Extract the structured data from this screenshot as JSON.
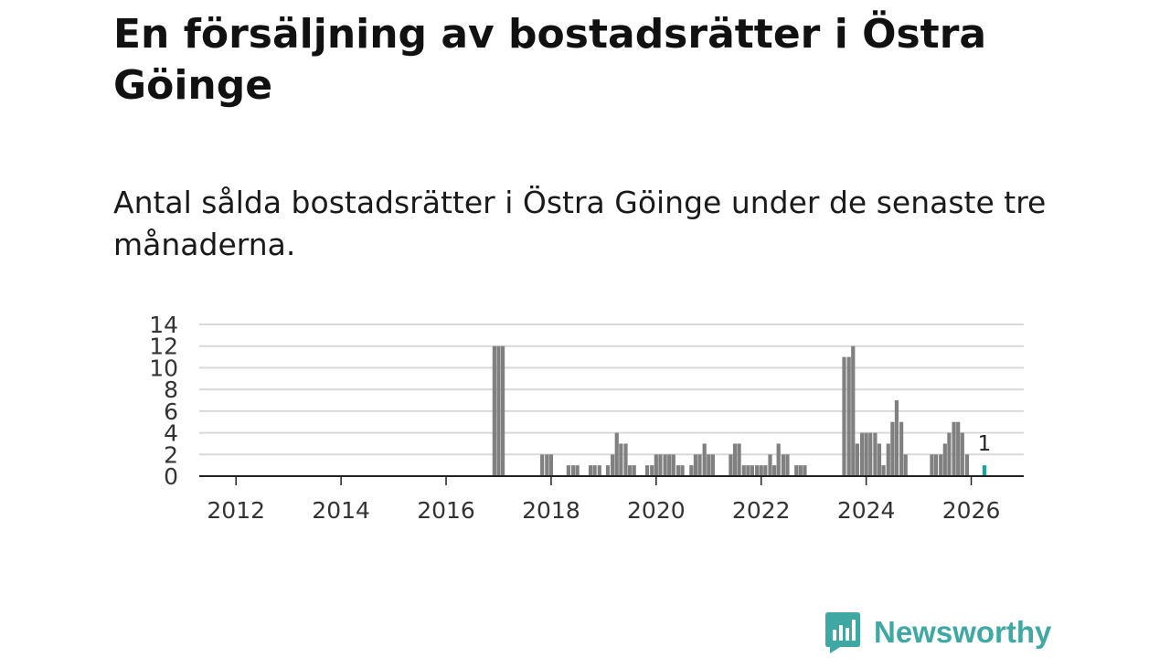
{
  "header": {
    "title": "En försäljning av bostadsrätter i Östra Göinge",
    "subtitle": "Antal sålda bostadsrätter i Östra Göinge under de senaste tre månaderna."
  },
  "brand": {
    "name": "Newsworthy",
    "color": "#3fa8a2",
    "logo_icon": "bar-chart-speech-bubble-icon"
  },
  "colors": {
    "bar": "#808080",
    "highlight": "#1aa398",
    "grid": "#d9d9d9",
    "axis": "#222222"
  },
  "chart_data": {
    "type": "bar",
    "title": "En försäljning av bostadsrätter i Östra Göinge",
    "subtitle": "Antal sålda bostadsrätter i Östra Göinge under de senaste tre månaderna.",
    "xlabel": "",
    "ylabel": "",
    "xlim": [
      2011.3,
      2027.0
    ],
    "ylim": [
      0,
      14
    ],
    "yticks": [
      0,
      2,
      4,
      6,
      8,
      10,
      12,
      14
    ],
    "xticks": [
      2012,
      2014,
      2016,
      2018,
      2020,
      2022,
      2024,
      2026
    ],
    "grid": true,
    "legend": "none",
    "series": [
      {
        "name": "Antal sålda bostadsrätter",
        "points": [
          {
            "x": 2016.92,
            "y": 12
          },
          {
            "x": 2017.0,
            "y": 12
          },
          {
            "x": 2017.08,
            "y": 12
          },
          {
            "x": 2017.83,
            "y": 2
          },
          {
            "x": 2017.92,
            "y": 2
          },
          {
            "x": 2018.0,
            "y": 2
          },
          {
            "x": 2018.33,
            "y": 1
          },
          {
            "x": 2018.42,
            "y": 1
          },
          {
            "x": 2018.5,
            "y": 1
          },
          {
            "x": 2018.75,
            "y": 1
          },
          {
            "x": 2018.83,
            "y": 1
          },
          {
            "x": 2018.92,
            "y": 1
          },
          {
            "x": 2019.08,
            "y": 1
          },
          {
            "x": 2019.17,
            "y": 2
          },
          {
            "x": 2019.25,
            "y": 4
          },
          {
            "x": 2019.33,
            "y": 3
          },
          {
            "x": 2019.42,
            "y": 3
          },
          {
            "x": 2019.5,
            "y": 1
          },
          {
            "x": 2019.58,
            "y": 1
          },
          {
            "x": 2019.83,
            "y": 1
          },
          {
            "x": 2019.92,
            "y": 1
          },
          {
            "x": 2020.0,
            "y": 2
          },
          {
            "x": 2020.08,
            "y": 2
          },
          {
            "x": 2020.17,
            "y": 2
          },
          {
            "x": 2020.25,
            "y": 2
          },
          {
            "x": 2020.33,
            "y": 2
          },
          {
            "x": 2020.42,
            "y": 1
          },
          {
            "x": 2020.5,
            "y": 1
          },
          {
            "x": 2020.67,
            "y": 1
          },
          {
            "x": 2020.75,
            "y": 2
          },
          {
            "x": 2020.83,
            "y": 2
          },
          {
            "x": 2020.92,
            "y": 3
          },
          {
            "x": 2021.0,
            "y": 2
          },
          {
            "x": 2021.08,
            "y": 2
          },
          {
            "x": 2021.42,
            "y": 2
          },
          {
            "x": 2021.5,
            "y": 3
          },
          {
            "x": 2021.58,
            "y": 3
          },
          {
            "x": 2021.67,
            "y": 1
          },
          {
            "x": 2021.75,
            "y": 1
          },
          {
            "x": 2021.83,
            "y": 1
          },
          {
            "x": 2021.92,
            "y": 1
          },
          {
            "x": 2022.0,
            "y": 1
          },
          {
            "x": 2022.08,
            "y": 1
          },
          {
            "x": 2022.17,
            "y": 2
          },
          {
            "x": 2022.25,
            "y": 1
          },
          {
            "x": 2022.33,
            "y": 3
          },
          {
            "x": 2022.42,
            "y": 2
          },
          {
            "x": 2022.5,
            "y": 2
          },
          {
            "x": 2022.67,
            "y": 1
          },
          {
            "x": 2022.75,
            "y": 1
          },
          {
            "x": 2022.83,
            "y": 1
          },
          {
            "x": 2023.58,
            "y": 11
          },
          {
            "x": 2023.67,
            "y": 11
          },
          {
            "x": 2023.75,
            "y": 12
          },
          {
            "x": 2023.83,
            "y": 3
          },
          {
            "x": 2023.92,
            "y": 4
          },
          {
            "x": 2024.0,
            "y": 4
          },
          {
            "x": 2024.08,
            "y": 4
          },
          {
            "x": 2024.17,
            "y": 4
          },
          {
            "x": 2024.25,
            "y": 3
          },
          {
            "x": 2024.33,
            "y": 1
          },
          {
            "x": 2024.42,
            "y": 3
          },
          {
            "x": 2024.5,
            "y": 5
          },
          {
            "x": 2024.58,
            "y": 7
          },
          {
            "x": 2024.67,
            "y": 5
          },
          {
            "x": 2024.75,
            "y": 2
          },
          {
            "x": 2025.25,
            "y": 2
          },
          {
            "x": 2025.33,
            "y": 2
          },
          {
            "x": 2025.42,
            "y": 2
          },
          {
            "x": 2025.5,
            "y": 3
          },
          {
            "x": 2025.58,
            "y": 4
          },
          {
            "x": 2025.67,
            "y": 5
          },
          {
            "x": 2025.75,
            "y": 5
          },
          {
            "x": 2025.83,
            "y": 4
          },
          {
            "x": 2025.92,
            "y": 2
          },
          {
            "x": 2026.25,
            "y": 1,
            "highlight": true
          }
        ]
      }
    ],
    "annotations": [
      {
        "x": 2026.25,
        "y": 1,
        "text": "1"
      }
    ]
  }
}
